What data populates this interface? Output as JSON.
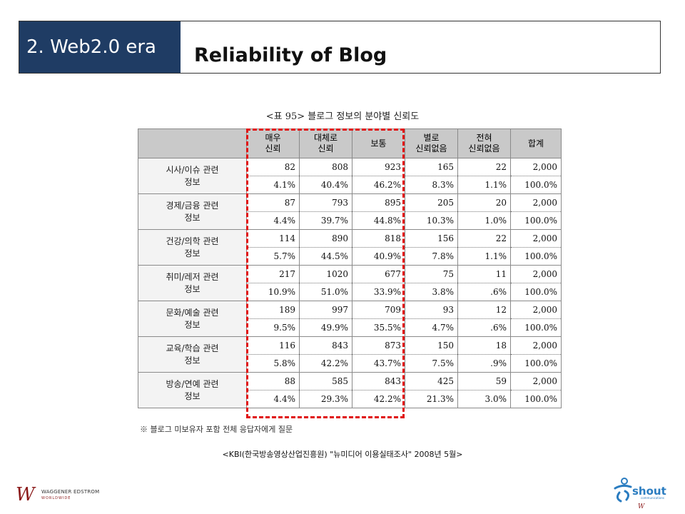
{
  "header": {
    "section_tab": "2. Web2.0 era",
    "title": "Reliability of Blog"
  },
  "table": {
    "caption": "<표 95> 블로그 정보의 분야별 신뢰도",
    "columns": [
      "매우\n신뢰",
      "대체로\n신뢰",
      "보통",
      "별로\n신뢰없음",
      "전혀\n신뢰없음",
      "합계"
    ],
    "rows": [
      {
        "category": "시사/이슈 관련\n정보",
        "counts": [
          "82",
          "808",
          "923",
          "165",
          "22",
          "2,000"
        ],
        "percents": [
          "4.1%",
          "40.4%",
          "46.2%",
          "8.3%",
          "1.1%",
          "100.0%"
        ]
      },
      {
        "category": "경제/금융 관련\n정보",
        "counts": [
          "87",
          "793",
          "895",
          "205",
          "20",
          "2,000"
        ],
        "percents": [
          "4.4%",
          "39.7%",
          "44.8%",
          "10.3%",
          "1.0%",
          "100.0%"
        ]
      },
      {
        "category": "건강/의학 관련\n정보",
        "counts": [
          "114",
          "890",
          "818",
          "156",
          "22",
          "2,000"
        ],
        "percents": [
          "5.7%",
          "44.5%",
          "40.9%",
          "7.8%",
          "1.1%",
          "100.0%"
        ]
      },
      {
        "category": "취미/레저 관련\n정보",
        "counts": [
          "217",
          "1020",
          "677",
          "75",
          "11",
          "2,000"
        ],
        "percents": [
          "10.9%",
          "51.0%",
          "33.9%",
          "3.8%",
          ".6%",
          "100.0%"
        ]
      },
      {
        "category": "문화/예술 관련\n정보",
        "counts": [
          "189",
          "997",
          "709",
          "93",
          "12",
          "2,000"
        ],
        "percents": [
          "9.5%",
          "49.9%",
          "35.5%",
          "4.7%",
          ".6%",
          "100.0%"
        ]
      },
      {
        "category": "교육/학습 관련\n정보",
        "counts": [
          "116",
          "843",
          "873",
          "150",
          "18",
          "2,000"
        ],
        "percents": [
          "5.8%",
          "42.2%",
          "43.7%",
          "7.5%",
          ".9%",
          "100.0%"
        ]
      },
      {
        "category": "방송/연예 관련\n정보",
        "counts": [
          "88",
          "585",
          "843",
          "425",
          "59",
          "2,000"
        ],
        "percents": [
          "4.4%",
          "29.3%",
          "42.2%",
          "21.3%",
          "3.0%",
          "100.0%"
        ]
      }
    ],
    "footnote": "※ 블로그 미보유자 포함 전체 응답자에게 질문",
    "highlight_color": "#e01010"
  },
  "source": "<KBI(한국방송영상산업진흥원) \"뉴미디어 이용실태조사\" 2008년 5월>",
  "logos": {
    "left_mark": "W",
    "left_name": "WAGGENER EDSTROM",
    "left_sub": "WORLDWIDE",
    "right_name": "shout",
    "right_sub": "communications"
  },
  "colors": {
    "section_tab_bg": "#1f3c64",
    "header_bg": "#c9c9c9"
  }
}
